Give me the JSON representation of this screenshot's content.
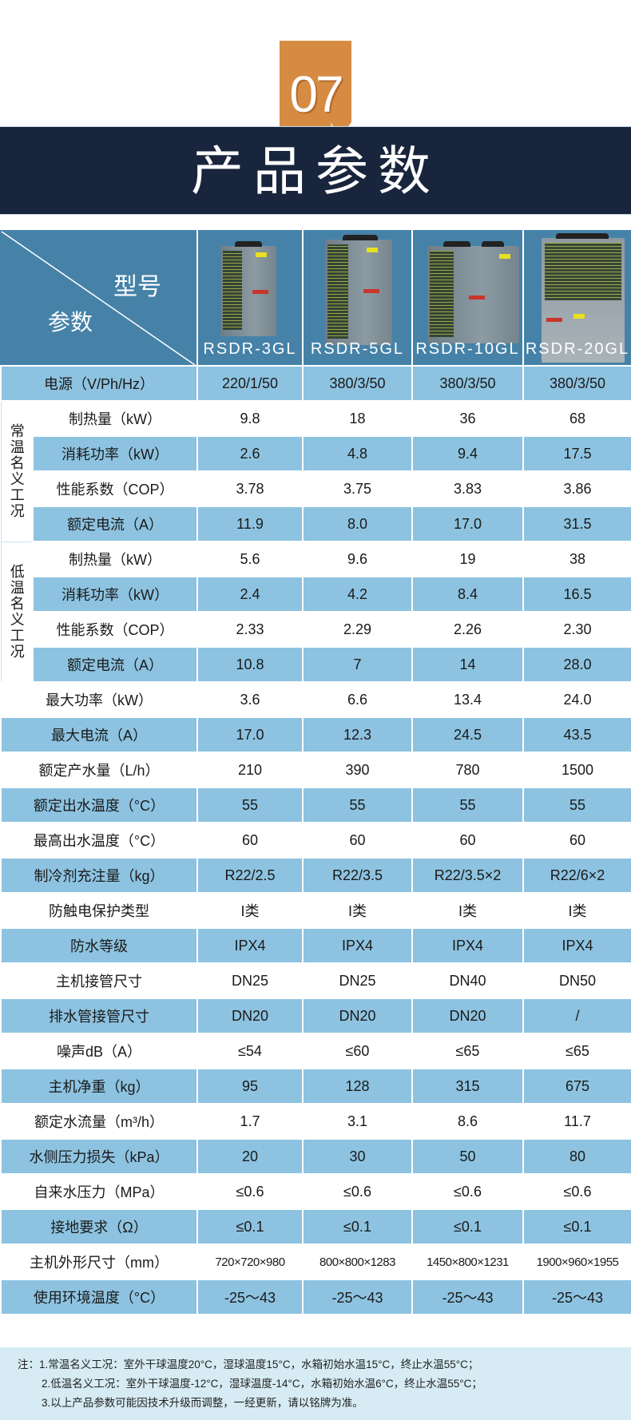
{
  "badge": {
    "number": "07",
    "color": "#d68b43"
  },
  "banner": {
    "title": "产品参数",
    "color": "#18253c"
  },
  "table_header": {
    "model_label": "型号",
    "param_label": "参数",
    "models": [
      "RSDR-3GL",
      "RSDR-5GL",
      "RSDR-10GL",
      "RSDR-20GL"
    ],
    "color": "#4682a8"
  },
  "colors": {
    "stripe": "#8dc3e0",
    "notes_bg": "#d6ebf3"
  },
  "groups": [
    {
      "label": "常温名义工况"
    },
    {
      "label": "低温名义工况"
    }
  ],
  "rows": [
    {
      "label": "电源（V/Ph/Hz）",
      "values": [
        "220/1/50",
        "380/3/50",
        "380/3/50",
        "380/3/50"
      ]
    },
    {
      "group": 0,
      "label": "制热量（kW）",
      "values": [
        "9.8",
        "18",
        "36",
        "68"
      ]
    },
    {
      "group": 0,
      "label": "消耗功率（kW）",
      "values": [
        "2.6",
        "4.8",
        "9.4",
        "17.5"
      ]
    },
    {
      "group": 0,
      "label": "性能系数（COP）",
      "values": [
        "3.78",
        "3.75",
        "3.83",
        "3.86"
      ]
    },
    {
      "group": 0,
      "label": "额定电流（A）",
      "values": [
        "11.9",
        "8.0",
        "17.0",
        "31.5"
      ]
    },
    {
      "group": 1,
      "label": "制热量（kW）",
      "values": [
        "5.6",
        "9.6",
        "19",
        "38"
      ]
    },
    {
      "group": 1,
      "label": "消耗功率（kW）",
      "values": [
        "2.4",
        "4.2",
        "8.4",
        "16.5"
      ]
    },
    {
      "group": 1,
      "label": "性能系数（COP）",
      "values": [
        "2.33",
        "2.29",
        "2.26",
        "2.30"
      ]
    },
    {
      "group": 1,
      "label": "额定电流（A）",
      "values": [
        "10.8",
        "7",
        "14",
        "28.0"
      ]
    },
    {
      "label": "最大功率（kW）",
      "values": [
        "3.6",
        "6.6",
        "13.4",
        "24.0"
      ]
    },
    {
      "label": "最大电流（A）",
      "values": [
        "17.0",
        "12.3",
        "24.5",
        "43.5"
      ]
    },
    {
      "label": "额定产水量（L/h）",
      "values": [
        "210",
        "390",
        "780",
        "1500"
      ]
    },
    {
      "label": "额定出水温度（°C）",
      "values": [
        "55",
        "55",
        "55",
        "55"
      ]
    },
    {
      "label": "最高出水温度（°C）",
      "values": [
        "60",
        "60",
        "60",
        "60"
      ]
    },
    {
      "label": "制冷剂充注量（kg）",
      "values": [
        "R22/2.5",
        "R22/3.5",
        "R22/3.5×2",
        "R22/6×2"
      ]
    },
    {
      "label": "防触电保护类型",
      "values": [
        "I类",
        "I类",
        "I类",
        "I类"
      ]
    },
    {
      "label": "防水等级",
      "values": [
        "IPX4",
        "IPX4",
        "IPX4",
        "IPX4"
      ]
    },
    {
      "label": "主机接管尺寸",
      "values": [
        "DN25",
        "DN25",
        "DN40",
        "DN50"
      ]
    },
    {
      "label": "排水管接管尺寸",
      "values": [
        "DN20",
        "DN20",
        "DN20",
        "/"
      ]
    },
    {
      "label": "噪声dB（A）",
      "values": [
        "≤54",
        "≤60",
        "≤65",
        "≤65"
      ]
    },
    {
      "label": "主机净重（kg）",
      "values": [
        "95",
        "128",
        "315",
        "675"
      ]
    },
    {
      "label": "额定水流量（m³/h）",
      "values": [
        "1.7",
        "3.1",
        "8.6",
        "11.7"
      ]
    },
    {
      "label": "水侧压力损失（kPa）",
      "values": [
        "20",
        "30",
        "50",
        "80"
      ]
    },
    {
      "label": "自来水压力（MPa）",
      "values": [
        "≤0.6",
        "≤0.6",
        "≤0.6",
        "≤0.6"
      ]
    },
    {
      "label": "接地要求（Ω）",
      "values": [
        "≤0.1",
        "≤0.1",
        "≤0.1",
        "≤0.1"
      ]
    },
    {
      "label": "主机外形尺寸（mm）",
      "values": [
        "720×720×980",
        "800×800×1283",
        "1450×800×1231",
        "1900×960×1955"
      ],
      "small": true
    },
    {
      "label": "使用环境温度（°C）",
      "values": [
        "-25～43",
        "-25～43",
        "-25～43",
        "-25～43"
      ]
    }
  ],
  "notes": [
    "注：1.常温名义工况：室外干球温度20°C，湿球温度15°C，水箱初始水温15°C，终止水温55°C；",
    "2.低温名义工况：室外干球温度-12°C，湿球温度-14°C，水箱初始水温6°C，终止水温55°C；",
    "3.以上产品参数可能因技术升级而调整，一经更新，请以铭牌为准。"
  ]
}
